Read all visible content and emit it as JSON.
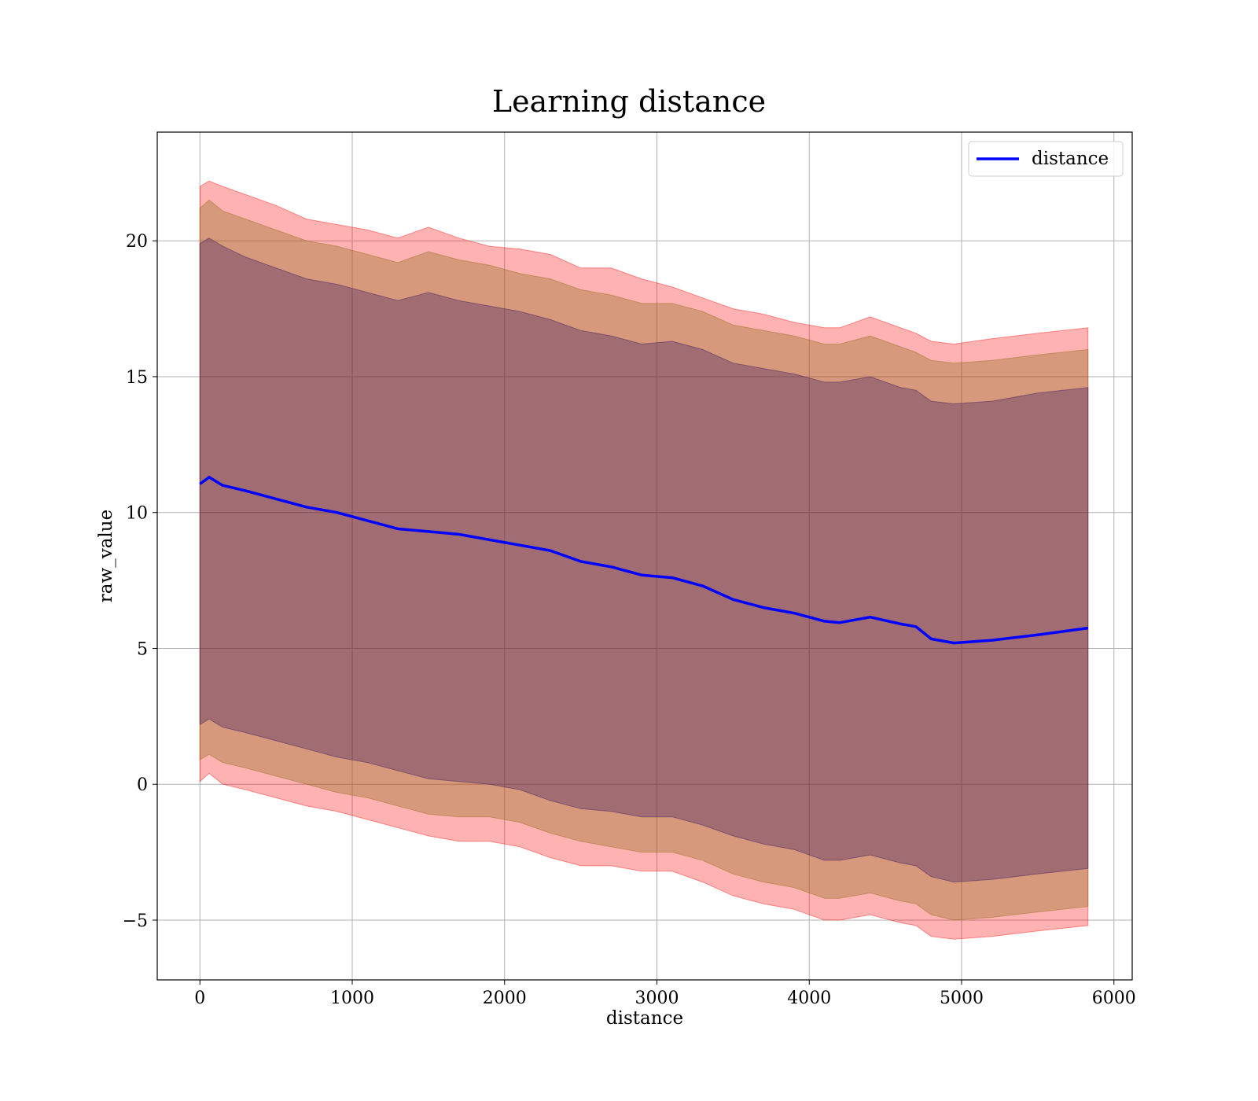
{
  "chart_data": {
    "type": "line",
    "title": "Learning distance",
    "xlabel": "distance",
    "ylabel": "raw_value",
    "xlim": [
      -280,
      6120
    ],
    "ylim": [
      -7.2,
      24.0
    ],
    "xticks": [
      0,
      1000,
      2000,
      3000,
      4000,
      5000,
      6000
    ],
    "yticks": [
      -5,
      0,
      5,
      10,
      15,
      20
    ],
    "ytick_labels": [
      "−5",
      "0",
      "5",
      "10",
      "15",
      "20"
    ],
    "grid": true,
    "legend_placement": "top-right",
    "series": [
      {
        "name": "distance",
        "color": "#0000ff",
        "x": [
          0,
          60,
          150,
          300,
          500,
          700,
          900,
          1100,
          1300,
          1500,
          1700,
          1900,
          2100,
          2300,
          2500,
          2700,
          2900,
          3100,
          3300,
          3500,
          3700,
          3900,
          4100,
          4200,
          4400,
          4600,
          4700,
          4800,
          4950,
          5200,
          5500,
          5830
        ],
        "y": [
          11.05,
          11.3,
          11.0,
          10.8,
          10.5,
          10.2,
          10.0,
          9.7,
          9.4,
          9.3,
          9.2,
          9.0,
          8.8,
          8.6,
          8.2,
          8.0,
          7.7,
          7.6,
          7.3,
          6.8,
          6.5,
          6.3,
          6.0,
          5.95,
          6.15,
          5.9,
          5.8,
          5.35,
          5.2,
          5.3,
          5.5,
          5.75
        ]
      }
    ],
    "bands": [
      {
        "label_kind": "std x3",
        "fill": "#ff0000",
        "opacity": 0.3,
        "upper": [
          22.0,
          22.2,
          22.0,
          21.7,
          21.3,
          20.8,
          20.6,
          20.4,
          20.1,
          20.5,
          20.1,
          19.8,
          19.7,
          19.5,
          19.0,
          19.0,
          18.6,
          18.3,
          17.9,
          17.5,
          17.3,
          17.0,
          16.8,
          16.8,
          17.2,
          16.8,
          16.6,
          16.3,
          16.2,
          16.4,
          16.6,
          16.8
        ],
        "lower": [
          0.1,
          0.4,
          0.0,
          -0.2,
          -0.5,
          -0.8,
          -1.0,
          -1.3,
          -1.6,
          -1.9,
          -2.1,
          -2.1,
          -2.3,
          -2.7,
          -3.0,
          -3.0,
          -3.2,
          -3.2,
          -3.6,
          -4.1,
          -4.4,
          -4.6,
          -5.0,
          -5.0,
          -4.8,
          -5.1,
          -5.2,
          -5.6,
          -5.7,
          -5.6,
          -5.4,
          -5.2
        ]
      },
      {
        "label_kind": "std x2",
        "fill": "#8b6914",
        "opacity": 0.35,
        "upper": [
          21.2,
          21.5,
          21.1,
          20.8,
          20.4,
          20.0,
          19.8,
          19.5,
          19.2,
          19.6,
          19.3,
          19.1,
          18.8,
          18.6,
          18.2,
          18.0,
          17.7,
          17.7,
          17.4,
          16.9,
          16.7,
          16.5,
          16.2,
          16.2,
          16.5,
          16.1,
          15.9,
          15.6,
          15.5,
          15.6,
          15.8,
          16.0
        ],
        "lower": [
          0.9,
          1.1,
          0.8,
          0.6,
          0.3,
          0.0,
          -0.3,
          -0.5,
          -0.8,
          -1.1,
          -1.2,
          -1.2,
          -1.4,
          -1.8,
          -2.1,
          -2.3,
          -2.5,
          -2.5,
          -2.8,
          -3.3,
          -3.6,
          -3.8,
          -4.2,
          -4.2,
          -4.0,
          -4.3,
          -4.4,
          -4.8,
          -5.0,
          -4.9,
          -4.7,
          -4.5
        ]
      },
      {
        "label_kind": "std x1",
        "fill": "#301060",
        "opacity": 0.32,
        "upper": [
          19.9,
          20.1,
          19.8,
          19.4,
          19.0,
          18.6,
          18.4,
          18.1,
          17.8,
          18.1,
          17.8,
          17.6,
          17.4,
          17.1,
          16.7,
          16.5,
          16.2,
          16.3,
          16.0,
          15.5,
          15.3,
          15.1,
          14.8,
          14.8,
          15.0,
          14.6,
          14.5,
          14.1,
          14.0,
          14.1,
          14.4,
          14.6
        ],
        "lower": [
          2.2,
          2.4,
          2.1,
          1.9,
          1.6,
          1.3,
          1.0,
          0.8,
          0.5,
          0.2,
          0.1,
          0.0,
          -0.2,
          -0.6,
          -0.9,
          -1.0,
          -1.2,
          -1.2,
          -1.5,
          -1.9,
          -2.2,
          -2.4,
          -2.8,
          -2.8,
          -2.6,
          -2.9,
          -3.0,
          -3.4,
          -3.6,
          -3.5,
          -3.3,
          -3.1
        ]
      }
    ]
  }
}
